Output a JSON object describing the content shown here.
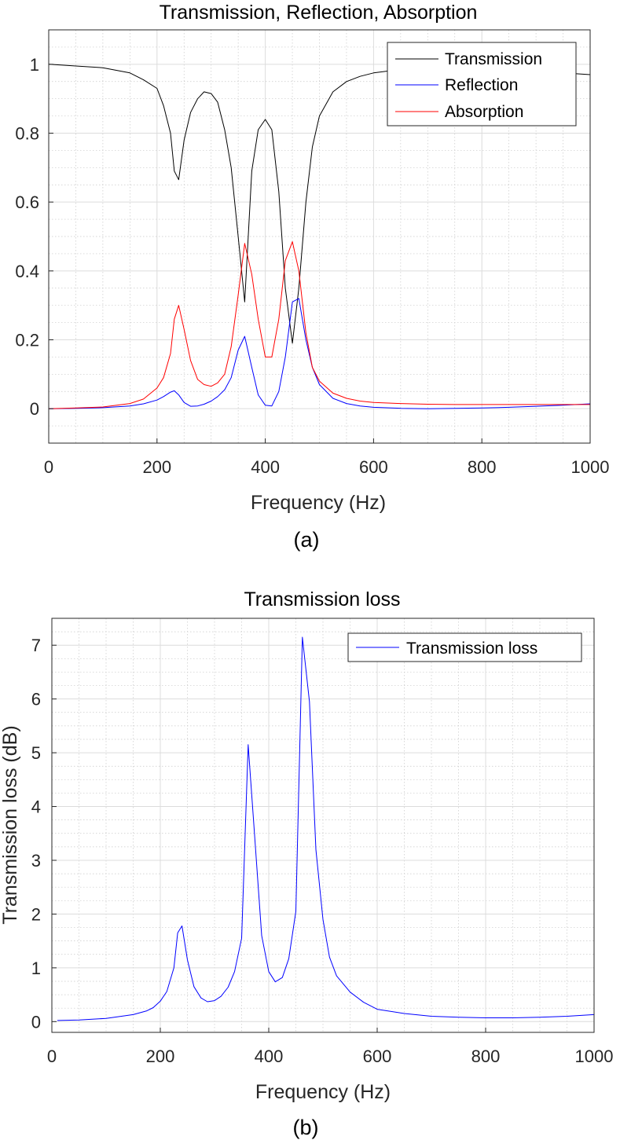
{
  "chart_data": [
    {
      "type": "line",
      "title": "Transmission, Reflection, Absorption",
      "xlabel": "Frequency (Hz)",
      "ylabel": "",
      "caption": "(a)",
      "xlim": [
        0,
        1000
      ],
      "ylim": [
        -0.1,
        1.1
      ],
      "xticks": [
        0,
        200,
        400,
        600,
        800,
        1000
      ],
      "xtick_labels": [
        "0",
        "200",
        "400",
        "600",
        "800",
        "1000"
      ],
      "yticks": [
        0,
        0.2,
        0.4,
        0.6,
        0.8,
        1
      ],
      "ytick_labels": [
        "0",
        "0.2",
        "0.4",
        "0.6",
        "0.8",
        "1"
      ],
      "grid": true,
      "minor_grid": true,
      "legend_position": "top-right",
      "series": [
        {
          "name": "Transmission",
          "color": "#000000",
          "x": [
            0,
            50,
            100,
            150,
            175,
            200,
            212,
            225,
            232,
            240,
            250,
            262,
            275,
            287,
            300,
            312,
            325,
            337,
            350,
            362,
            375,
            387,
            400,
            412,
            425,
            437,
            450,
            462,
            475,
            487,
            500,
            525,
            550,
            575,
            600,
            650,
            700,
            750,
            800,
            850,
            900,
            950,
            1000
          ],
          "values": [
            1.0,
            0.995,
            0.99,
            0.975,
            0.955,
            0.93,
            0.88,
            0.8,
            0.69,
            0.665,
            0.78,
            0.86,
            0.9,
            0.92,
            0.915,
            0.89,
            0.81,
            0.7,
            0.5,
            0.31,
            0.69,
            0.81,
            0.84,
            0.81,
            0.63,
            0.35,
            0.19,
            0.35,
            0.6,
            0.76,
            0.85,
            0.92,
            0.95,
            0.965,
            0.975,
            0.985,
            0.99,
            0.99,
            0.99,
            0.985,
            0.98,
            0.975,
            0.97
          ]
        },
        {
          "name": "Reflection",
          "color": "#0000ff",
          "x": [
            0,
            50,
            100,
            150,
            175,
            200,
            212,
            225,
            232,
            240,
            250,
            262,
            275,
            287,
            300,
            312,
            325,
            337,
            350,
            362,
            375,
            387,
            400,
            412,
            425,
            437,
            450,
            462,
            475,
            487,
            500,
            525,
            550,
            575,
            600,
            650,
            700,
            750,
            800,
            850,
            900,
            950,
            1000
          ],
          "values": [
            0.0,
            0.001,
            0.003,
            0.008,
            0.014,
            0.025,
            0.035,
            0.048,
            0.052,
            0.04,
            0.018,
            0.007,
            0.008,
            0.013,
            0.022,
            0.035,
            0.055,
            0.09,
            0.17,
            0.21,
            0.12,
            0.04,
            0.01,
            0.008,
            0.05,
            0.15,
            0.31,
            0.32,
            0.2,
            0.12,
            0.07,
            0.03,
            0.015,
            0.008,
            0.004,
            0.001,
            0.0,
            0.001,
            0.002,
            0.004,
            0.007,
            0.01,
            0.014
          ]
        },
        {
          "name": "Absorption",
          "color": "#ff0000",
          "x": [
            0,
            50,
            100,
            150,
            175,
            200,
            212,
            225,
            232,
            240,
            250,
            262,
            275,
            287,
            300,
            312,
            325,
            337,
            350,
            362,
            375,
            387,
            400,
            412,
            425,
            437,
            450,
            462,
            475,
            487,
            500,
            525,
            550,
            575,
            600,
            650,
            700,
            750,
            800,
            850,
            900,
            950,
            1000
          ],
          "values": [
            0.0,
            0.002,
            0.005,
            0.015,
            0.028,
            0.06,
            0.09,
            0.16,
            0.26,
            0.3,
            0.23,
            0.14,
            0.085,
            0.07,
            0.065,
            0.075,
            0.1,
            0.18,
            0.33,
            0.48,
            0.39,
            0.26,
            0.15,
            0.15,
            0.26,
            0.43,
            0.485,
            0.4,
            0.22,
            0.12,
            0.08,
            0.045,
            0.03,
            0.022,
            0.018,
            0.015,
            0.013,
            0.012,
            0.012,
            0.012,
            0.012,
            0.012,
            0.012
          ]
        }
      ]
    },
    {
      "type": "line",
      "title": "Transmission loss",
      "xlabel": "Frequency (Hz)",
      "ylabel": "Transmission loss (dB)",
      "caption": "(b)",
      "xlim": [
        0,
        1000
      ],
      "ylim": [
        -0.2,
        7.5
      ],
      "xticks": [
        0,
        200,
        400,
        600,
        800,
        1000
      ],
      "xtick_labels": [
        "0",
        "200",
        "400",
        "600",
        "800",
        "1000"
      ],
      "yticks": [
        0,
        1,
        2,
        3,
        4,
        5,
        6,
        7
      ],
      "ytick_labels": [
        "0",
        "1",
        "2",
        "3",
        "4",
        "5",
        "6",
        "7"
      ],
      "grid": true,
      "minor_grid": true,
      "legend_position": "top-right",
      "series": [
        {
          "name": "Transmission loss",
          "color": "#0000ff",
          "x": [
            10,
            50,
            100,
            150,
            175,
            187,
            200,
            212,
            225,
            232,
            240,
            250,
            262,
            275,
            287,
            300,
            312,
            325,
            337,
            350,
            362,
            375,
            387,
            400,
            412,
            425,
            437,
            450,
            462,
            475,
            487,
            500,
            512,
            525,
            550,
            575,
            600,
            650,
            700,
            750,
            800,
            850,
            900,
            950,
            1000
          ],
          "values": [
            0.02,
            0.03,
            0.06,
            0.13,
            0.2,
            0.26,
            0.38,
            0.56,
            1.0,
            1.65,
            1.78,
            1.15,
            0.65,
            0.44,
            0.37,
            0.39,
            0.47,
            0.64,
            0.93,
            1.55,
            5.15,
            3.3,
            1.6,
            0.93,
            0.74,
            0.82,
            1.17,
            2.05,
            7.15,
            5.95,
            3.2,
            1.9,
            1.2,
            0.85,
            0.55,
            0.36,
            0.23,
            0.15,
            0.1,
            0.08,
            0.07,
            0.07,
            0.08,
            0.1,
            0.13
          ]
        }
      ]
    }
  ]
}
